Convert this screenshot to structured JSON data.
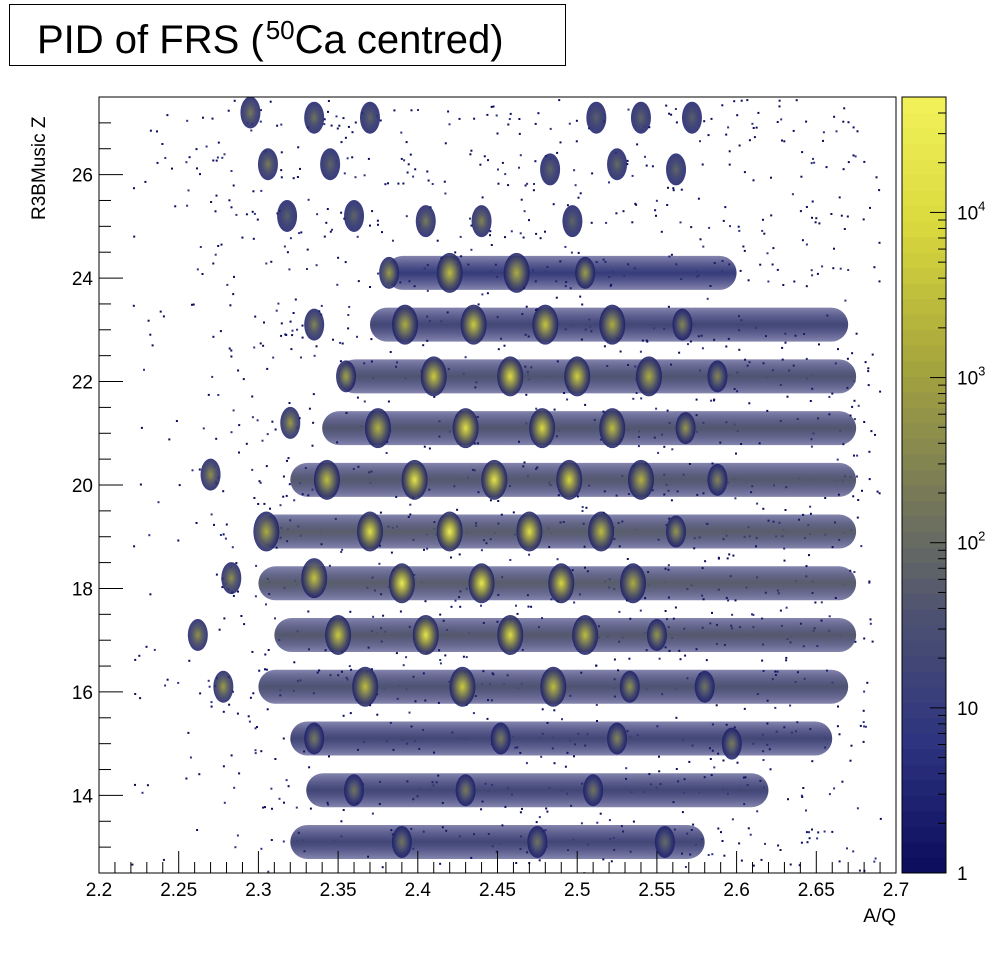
{
  "title": {
    "pre": "PID of FRS (",
    "sup": "50",
    "post": "Ca centred)"
  },
  "chart_data": {
    "type": "heatmap",
    "title": "PID of FRS (50Ca centred)",
    "xlabel": "A/Q",
    "ylabel": "R3BMusic Z",
    "xlim": [
      2.2,
      2.7
    ],
    "ylim": [
      12.5,
      27.5
    ],
    "x_ticks": [
      "2.2",
      "2.25",
      "2.3",
      "2.35",
      "2.4",
      "2.45",
      "2.5",
      "2.55",
      "2.6",
      "2.65",
      "2.7"
    ],
    "y_ticks": [
      "14",
      "16",
      "18",
      "20",
      "22",
      "24",
      "26"
    ],
    "z_scale": "log",
    "zlim": [
      1,
      50000
    ],
    "colorbar_ticks": [
      {
        "value": 1,
        "base": "1",
        "exp": ""
      },
      {
        "value": 10,
        "base": "10",
        "exp": ""
      },
      {
        "value": 100,
        "base": "10",
        "exp": "2"
      },
      {
        "value": 1000,
        "base": "10",
        "exp": "3"
      },
      {
        "value": 10000,
        "base": "10",
        "exp": "4"
      }
    ],
    "colormap": [
      "#0b0c5c",
      "#2d337f",
      "#4d5272",
      "#7b7d55",
      "#a9a83d",
      "#d9d83d",
      "#f2f25a"
    ],
    "blobs": [
      {
        "aq": 2.295,
        "z": 27.2,
        "counts": 200
      },
      {
        "aq": 2.335,
        "z": 27.1,
        "counts": 150
      },
      {
        "aq": 2.37,
        "z": 27.1,
        "counts": 80
      },
      {
        "aq": 2.512,
        "z": 27.1,
        "counts": 60
      },
      {
        "aq": 2.54,
        "z": 27.1,
        "counts": 80
      },
      {
        "aq": 2.572,
        "z": 27.1,
        "counts": 60
      },
      {
        "aq": 2.306,
        "z": 26.2,
        "counts": 200
      },
      {
        "aq": 2.345,
        "z": 26.2,
        "counts": 80
      },
      {
        "aq": 2.483,
        "z": 26.1,
        "counts": 80
      },
      {
        "aq": 2.525,
        "z": 26.2,
        "counts": 100
      },
      {
        "aq": 2.562,
        "z": 26.1,
        "counts": 80
      },
      {
        "aq": 2.318,
        "z": 25.2,
        "counts": 60
      },
      {
        "aq": 2.36,
        "z": 25.2,
        "counts": 80
      },
      {
        "aq": 2.405,
        "z": 25.1,
        "counts": 200
      },
      {
        "aq": 2.44,
        "z": 25.1,
        "counts": 300
      },
      {
        "aq": 2.497,
        "z": 25.1,
        "counts": 80
      },
      {
        "aq": 2.382,
        "z": 24.1,
        "counts": 800
      },
      {
        "aq": 2.42,
        "z": 24.1,
        "counts": 3000
      },
      {
        "aq": 2.462,
        "z": 24.1,
        "counts": 1500
      },
      {
        "aq": 2.505,
        "z": 24.1,
        "counts": 800
      },
      {
        "aq": 2.335,
        "z": 23.1,
        "counts": 300
      },
      {
        "aq": 2.392,
        "z": 23.1,
        "counts": 1500
      },
      {
        "aq": 2.435,
        "z": 23.1,
        "counts": 5000
      },
      {
        "aq": 2.48,
        "z": 23.1,
        "counts": 4000
      },
      {
        "aq": 2.522,
        "z": 23.1,
        "counts": 1500
      },
      {
        "aq": 2.566,
        "z": 23.1,
        "counts": 300
      },
      {
        "aq": 2.355,
        "z": 22.1,
        "counts": 1000
      },
      {
        "aq": 2.41,
        "z": 22.1,
        "counts": 5000
      },
      {
        "aq": 2.458,
        "z": 22.1,
        "counts": 12000
      },
      {
        "aq": 2.5,
        "z": 22.1,
        "counts": 6000
      },
      {
        "aq": 2.545,
        "z": 22.1,
        "counts": 1500
      },
      {
        "aq": 2.588,
        "z": 22.1,
        "counts": 300
      },
      {
        "aq": 2.32,
        "z": 21.2,
        "counts": 800
      },
      {
        "aq": 2.375,
        "z": 21.1,
        "counts": 2000
      },
      {
        "aq": 2.43,
        "z": 21.1,
        "counts": 15000
      },
      {
        "aq": 2.478,
        "z": 21.1,
        "counts": 10000
      },
      {
        "aq": 2.522,
        "z": 21.1,
        "counts": 3000
      },
      {
        "aq": 2.568,
        "z": 21.1,
        "counts": 600
      },
      {
        "aq": 2.27,
        "z": 20.2,
        "counts": 500
      },
      {
        "aq": 2.343,
        "z": 20.1,
        "counts": 3000
      },
      {
        "aq": 2.398,
        "z": 20.1,
        "counts": 20000
      },
      {
        "aq": 2.448,
        "z": 20.1,
        "counts": 20000
      },
      {
        "aq": 2.495,
        "z": 20.1,
        "counts": 8000
      },
      {
        "aq": 2.54,
        "z": 20.1,
        "counts": 2000
      },
      {
        "aq": 2.588,
        "z": 20.1,
        "counts": 300
      },
      {
        "aq": 2.305,
        "z": 19.1,
        "counts": 1500
      },
      {
        "aq": 2.37,
        "z": 19.1,
        "counts": 15000
      },
      {
        "aq": 2.42,
        "z": 19.1,
        "counts": 40000
      },
      {
        "aq": 2.47,
        "z": 19.1,
        "counts": 15000
      },
      {
        "aq": 2.515,
        "z": 19.1,
        "counts": 3000
      },
      {
        "aq": 2.562,
        "z": 19.1,
        "counts": 600
      },
      {
        "aq": 2.283,
        "z": 18.2,
        "counts": 500
      },
      {
        "aq": 2.335,
        "z": 18.2,
        "counts": 4000
      },
      {
        "aq": 2.39,
        "z": 18.1,
        "counts": 30000
      },
      {
        "aq": 2.44,
        "z": 18.1,
        "counts": 25000
      },
      {
        "aq": 2.49,
        "z": 18.1,
        "counts": 8000
      },
      {
        "aq": 2.535,
        "z": 18.1,
        "counts": 1500
      },
      {
        "aq": 2.262,
        "z": 17.1,
        "counts": 500
      },
      {
        "aq": 2.35,
        "z": 17.1,
        "counts": 5000
      },
      {
        "aq": 2.405,
        "z": 17.1,
        "counts": 20000
      },
      {
        "aq": 2.458,
        "z": 17.1,
        "counts": 12000
      },
      {
        "aq": 2.505,
        "z": 17.1,
        "counts": 3000
      },
      {
        "aq": 2.55,
        "z": 17.1,
        "counts": 600
      },
      {
        "aq": 2.278,
        "z": 16.1,
        "counts": 800
      },
      {
        "aq": 2.367,
        "z": 16.1,
        "counts": 3000
      },
      {
        "aq": 2.428,
        "z": 16.1,
        "counts": 5000
      },
      {
        "aq": 2.485,
        "z": 16.1,
        "counts": 3000
      },
      {
        "aq": 2.533,
        "z": 16.1,
        "counts": 500
      },
      {
        "aq": 2.58,
        "z": 16.1,
        "counts": 150
      },
      {
        "aq": 2.335,
        "z": 15.1,
        "counts": 200
      },
      {
        "aq": 2.452,
        "z": 15.1,
        "counts": 200
      },
      {
        "aq": 2.525,
        "z": 15.1,
        "counts": 300
      },
      {
        "aq": 2.597,
        "z": 15.0,
        "counts": 200
      },
      {
        "aq": 2.36,
        "z": 14.1,
        "counts": 150
      },
      {
        "aq": 2.43,
        "z": 14.1,
        "counts": 200
      },
      {
        "aq": 2.51,
        "z": 14.1,
        "counts": 150
      },
      {
        "aq": 2.39,
        "z": 13.1,
        "counts": 150
      },
      {
        "aq": 2.475,
        "z": 13.1,
        "counts": 150
      },
      {
        "aq": 2.555,
        "z": 13.1,
        "counts": 100
      }
    ],
    "bands": [
      {
        "z": 13.1,
        "aq_start": 2.32,
        "aq_end": 2.58,
        "counts": 20
      },
      {
        "z": 14.1,
        "aq_start": 2.33,
        "aq_end": 2.62,
        "counts": 20
      },
      {
        "z": 15.1,
        "aq_start": 2.32,
        "aq_end": 2.66,
        "counts": 20
      },
      {
        "z": 16.1,
        "aq_start": 2.3,
        "aq_end": 2.67,
        "counts": 40
      },
      {
        "z": 17.1,
        "aq_start": 2.31,
        "aq_end": 2.675,
        "counts": 50
      },
      {
        "z": 18.1,
        "aq_start": 2.3,
        "aq_end": 2.675,
        "counts": 60
      },
      {
        "z": 19.1,
        "aq_start": 2.3,
        "aq_end": 2.675,
        "counts": 60
      },
      {
        "z": 20.1,
        "aq_start": 2.32,
        "aq_end": 2.675,
        "counts": 50
      },
      {
        "z": 21.1,
        "aq_start": 2.34,
        "aq_end": 2.675,
        "counts": 45
      },
      {
        "z": 22.1,
        "aq_start": 2.35,
        "aq_end": 2.675,
        "counts": 40
      },
      {
        "z": 23.1,
        "aq_start": 2.37,
        "aq_end": 2.67,
        "counts": 20
      },
      {
        "z": 24.1,
        "aq_start": 2.38,
        "aq_end": 2.6,
        "counts": 10
      }
    ]
  }
}
